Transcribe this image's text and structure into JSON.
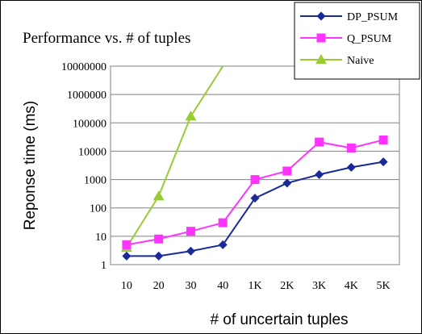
{
  "chart_data": {
    "type": "line",
    "title": "Performance vs. # of tuples",
    "xlabel": "# of uncertain tuples",
    "ylabel": "Reponse time (ms)",
    "y_scale": "log",
    "ylim": [
      1,
      10000000
    ],
    "y_ticks": [
      "1",
      "10",
      "100",
      "1000",
      "10000",
      "100000",
      "1000000",
      "10000000"
    ],
    "categories": [
      "10",
      "20",
      "30",
      "40",
      "1K",
      "2K",
      "3K",
      "4K",
      "5K"
    ],
    "grid": "horizontal",
    "legend_position": "top-right",
    "series": [
      {
        "name": "DP_PSUM",
        "color": "#1a2a99",
        "marker": "diamond",
        "values": [
          2,
          2,
          3,
          5,
          220,
          750,
          1500,
          2700,
          4200
        ]
      },
      {
        "name": "Q_PSUM",
        "color": "#ff33ff",
        "marker": "square",
        "values": [
          5,
          8,
          15,
          30,
          1000,
          2000,
          21000,
          13000,
          25000
        ]
      },
      {
        "name": "Naive",
        "color": "#99cc33",
        "marker": "triangle",
        "values": [
          4,
          260,
          170000,
          10000000,
          null,
          null,
          null,
          null,
          null
        ]
      }
    ]
  }
}
